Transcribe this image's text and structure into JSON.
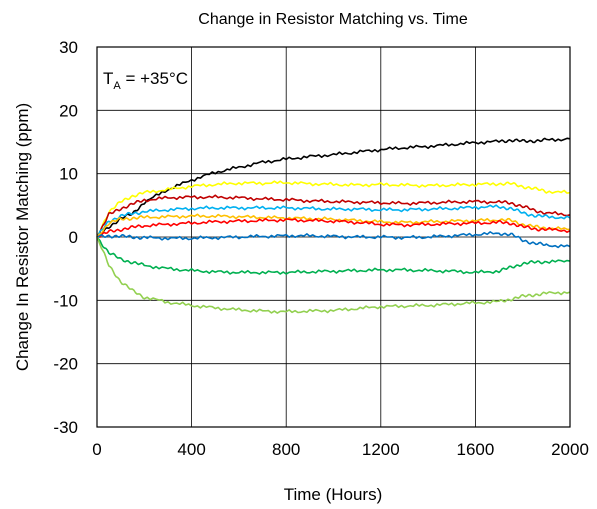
{
  "chart_data": {
    "type": "line",
    "title": "Change in Resistor Matching vs. Time",
    "xlabel": "Time (Hours)",
    "ylabel": "Change In Resistor Matching (ppm)",
    "xlim": [
      0,
      2000
    ],
    "ylim": [
      -30,
      30
    ],
    "x_ticks": [
      0,
      400,
      800,
      1200,
      1600,
      2000
    ],
    "y_ticks": [
      -30,
      -20,
      -10,
      0,
      10,
      20,
      30
    ],
    "x_tick_labels": [
      "0",
      "400",
      "800",
      "1200",
      "1600",
      "2000"
    ],
    "y_tick_labels": [
      "-30",
      "-20",
      "-10",
      "0",
      "10",
      "20",
      "30"
    ],
    "grid": true,
    "annotation": {
      "main": "T",
      "sub": "A",
      "rest": " = +35°C"
    },
    "x": [
      0,
      50,
      100,
      150,
      200,
      300,
      400,
      500,
      600,
      700,
      800,
      900,
      1000,
      1100,
      1200,
      1300,
      1400,
      1500,
      1600,
      1700,
      1750,
      1800,
      1850,
      1900,
      2000
    ],
    "series": [
      {
        "color": "#000000",
        "values": [
          0,
          1.5,
          3.0,
          3.6,
          5.5,
          7.5,
          9.0,
          10.2,
          11.0,
          11.8,
          12.3,
          12.7,
          13.0,
          13.4,
          13.8,
          14.1,
          14.3,
          14.6,
          14.9,
          15.1,
          15.3,
          15.1,
          15.2,
          15.3,
          15.5
        ]
      },
      {
        "color": "#ffff00",
        "values": [
          0,
          4.0,
          5.5,
          6.5,
          7.0,
          7.5,
          8.0,
          8.3,
          8.5,
          8.5,
          8.6,
          8.4,
          8.3,
          8.2,
          8.3,
          8.2,
          8.1,
          8.2,
          8.3,
          8.4,
          8.4,
          8.0,
          7.6,
          7.2,
          7.0
        ]
      },
      {
        "color": "#c00000",
        "values": [
          0,
          3.5,
          4.5,
          5.2,
          5.8,
          6.2,
          6.3,
          6.3,
          6.2,
          6.0,
          5.9,
          5.7,
          5.6,
          5.5,
          5.4,
          5.3,
          5.4,
          5.5,
          5.6,
          5.5,
          5.4,
          4.8,
          4.2,
          3.8,
          3.5
        ]
      },
      {
        "color": "#00b0f0",
        "values": [
          0,
          2.5,
          3.3,
          3.7,
          4.0,
          4.3,
          4.5,
          4.6,
          4.6,
          4.6,
          4.6,
          4.5,
          4.4,
          4.4,
          4.3,
          4.3,
          4.4,
          4.5,
          4.7,
          4.8,
          4.5,
          3.8,
          3.4,
          3.2,
          3.0
        ]
      },
      {
        "color": "#ffc000",
        "values": [
          0,
          2.2,
          2.8,
          3.0,
          3.1,
          3.2,
          3.3,
          3.3,
          3.2,
          3.1,
          3.0,
          2.9,
          2.8,
          2.6,
          2.4,
          2.3,
          2.4,
          2.5,
          2.6,
          2.7,
          2.6,
          2.0,
          1.6,
          1.4,
          1.2
        ]
      },
      {
        "color": "#ff0000",
        "values": [
          0,
          0.8,
          1.2,
          1.5,
          1.8,
          2.0,
          2.2,
          2.4,
          2.5,
          2.6,
          2.7,
          2.6,
          2.5,
          2.3,
          2.0,
          1.9,
          2.0,
          2.1,
          2.2,
          2.3,
          2.2,
          1.6,
          1.3,
          1.2,
          1.0
        ]
      },
      {
        "color": "#0070c0",
        "values": [
          0,
          0.2,
          0.1,
          0.0,
          -0.1,
          -0.2,
          -0.2,
          -0.1,
          0.0,
          0.1,
          0.2,
          0.2,
          0.1,
          0.0,
          0.0,
          -0.1,
          0.0,
          0.2,
          0.4,
          0.6,
          0.4,
          -0.5,
          -1.0,
          -1.3,
          -1.5
        ]
      },
      {
        "color": "#00b050",
        "values": [
          0,
          -2.5,
          -3.5,
          -4.0,
          -4.5,
          -5.0,
          -5.3,
          -5.5,
          -5.6,
          -5.6,
          -5.6,
          -5.5,
          -5.4,
          -5.3,
          -5.2,
          -5.2,
          -5.3,
          -5.4,
          -5.6,
          -5.4,
          -4.8,
          -4.2,
          -4.0,
          -3.9,
          -3.8
        ]
      },
      {
        "color": "#92d050",
        "values": [
          0,
          -4.5,
          -7.0,
          -8.5,
          -9.5,
          -10.3,
          -10.8,
          -11.2,
          -11.5,
          -11.7,
          -11.8,
          -11.7,
          -11.6,
          -11.3,
          -11.0,
          -10.9,
          -10.8,
          -10.6,
          -10.4,
          -10.2,
          -9.8,
          -9.4,
          -9.1,
          -8.9,
          -8.7
        ]
      }
    ]
  }
}
